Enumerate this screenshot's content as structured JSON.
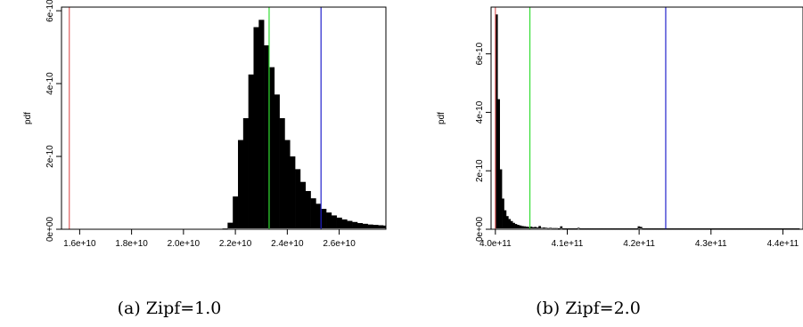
{
  "chart_data": [
    {
      "type": "bar",
      "ylabel": "pdf",
      "caption": "(a) Zipf=1.0",
      "xlim": [
        15300000000,
        27800000000
      ],
      "ylim": [
        0,
        6.1e-10
      ],
      "xticks": [
        "1.6e+10",
        "1.8e+10",
        "2.0e+10",
        "2.2e+10",
        "2.4e+10",
        "2.6e+10"
      ],
      "xtick_values": [
        16000000000,
        18000000000,
        20000000000,
        22000000000,
        24000000000,
        26000000000
      ],
      "yticks": [
        "0e+00",
        "2e-10",
        "4e-10",
        "6e-10"
      ],
      "ytick_values": [
        0,
        2e-10,
        4e-10,
        6e-10
      ],
      "bin_start": 21500000000,
      "bin_width": 200000000,
      "values": [
        2e-12,
        1.8e-11,
        9e-11,
        2.45e-10,
        3.05e-10,
        4.25e-10,
        5.55e-10,
        5.75e-10,
        5.05e-10,
        4.45e-10,
        3.7e-10,
        3.05e-10,
        2.45e-10,
        2e-10,
        1.65e-10,
        1.3e-10,
        1.05e-10,
        8.5e-11,
        7e-11,
        5.6e-11,
        4.6e-11,
        3.8e-11,
        3.2e-11,
        2.7e-11,
        2.3e-11,
        2e-11,
        1.7e-11,
        1.5e-11,
        1.3e-11,
        1.2e-11,
        1.1e-11,
        1e-11
      ],
      "vlines": [
        {
          "x": 15600000000,
          "color": "#e06060"
        },
        {
          "x": 23300000000,
          "color": "#33dd33"
        },
        {
          "x": 25300000000,
          "color": "#2222cc"
        }
      ]
    },
    {
      "type": "bar",
      "ylabel": "pdf",
      "caption": "(b) Zipf=2.0",
      "xlim": [
        399400000000,
        442800000000
      ],
      "ylim": [
        0,
        7.6e-10
      ],
      "xticks": [
        "4.0e+11",
        "4.1e+11",
        "4.2e+11",
        "4.3e+11",
        "4.4e+11"
      ],
      "xtick_values": [
        400000000000,
        410000000000,
        420000000000,
        430000000000,
        440000000000
      ],
      "yticks": [
        "0e+00",
        "2e-10",
        "4e-10",
        "6e-10"
      ],
      "ytick_values": [
        0,
        2e-10,
        4e-10,
        6e-10
      ],
      "bin_start": 400000000000,
      "bin_width": 300000000,
      "values": [
        7.35e-10,
        4.45e-10,
        2.05e-10,
        1.05e-10,
        6.5e-11,
        4.5e-11,
        3.5e-11,
        2.8e-11,
        2.2e-11,
        1.8e-11,
        1.5e-11,
        1.3e-11,
        1.1e-11,
        1e-11,
        9e-12,
        8e-12,
        9e-12,
        7e-12,
        8e-12,
        6e-12,
        1.1e-11,
        5e-12,
        6e-12,
        5e-12,
        4e-12,
        5e-12,
        4e-12,
        4e-12,
        4e-12,
        3e-12,
        1e-11,
        3e-12,
        3e-12,
        3e-12,
        3e-12,
        3e-12,
        3e-12,
        3e-12,
        5e-12,
        3e-12,
        3e-12,
        3e-12,
        3e-12,
        3e-12,
        3e-12,
        3e-12,
        3e-12,
        3e-12,
        3e-12,
        3e-12,
        3e-12,
        3e-12,
        3e-12,
        3e-12,
        3e-12,
        3e-12,
        3e-12,
        3e-12,
        3e-12,
        3e-12,
        3e-12,
        3e-12,
        3e-12,
        3e-12,
        3e-12,
        3e-12,
        1e-11,
        8e-12,
        3e-12,
        3e-12,
        3e-12,
        3e-12,
        3e-12,
        3e-12,
        3e-12,
        3e-12,
        3e-12,
        3e-12,
        3e-12,
        3e-12,
        3e-12,
        3e-12,
        3e-12,
        3e-12,
        3e-12,
        3e-12,
        3e-12,
        3e-12,
        3e-12,
        3e-12,
        3e-12,
        3e-12,
        3e-12,
        3e-12,
        3e-12,
        3e-12,
        3e-12,
        3e-12,
        3e-12,
        3e-12,
        3e-12,
        3e-12,
        3e-12,
        3e-12,
        3e-12,
        3e-12,
        3e-12,
        3e-12,
        3e-12,
        3e-12,
        3e-12,
        3e-12,
        3e-12,
        3e-12,
        3e-12,
        3e-12,
        3e-12,
        3e-12,
        3e-12,
        3e-12,
        3e-12,
        3e-12,
        3e-12,
        3e-12,
        3e-12,
        3e-12,
        3e-12,
        3e-12,
        3e-12,
        3e-12,
        3e-12,
        3e-12,
        3e-12,
        3e-12,
        3e-12,
        3e-12,
        3e-12,
        3e-12,
        3e-12,
        3e-12,
        3e-12
      ],
      "vlines": [
        {
          "x": 400000000000,
          "color": "#e06060"
        },
        {
          "x": 404800000000,
          "color": "#33dd33"
        },
        {
          "x": 423700000000,
          "color": "#2222cc"
        }
      ]
    }
  ]
}
